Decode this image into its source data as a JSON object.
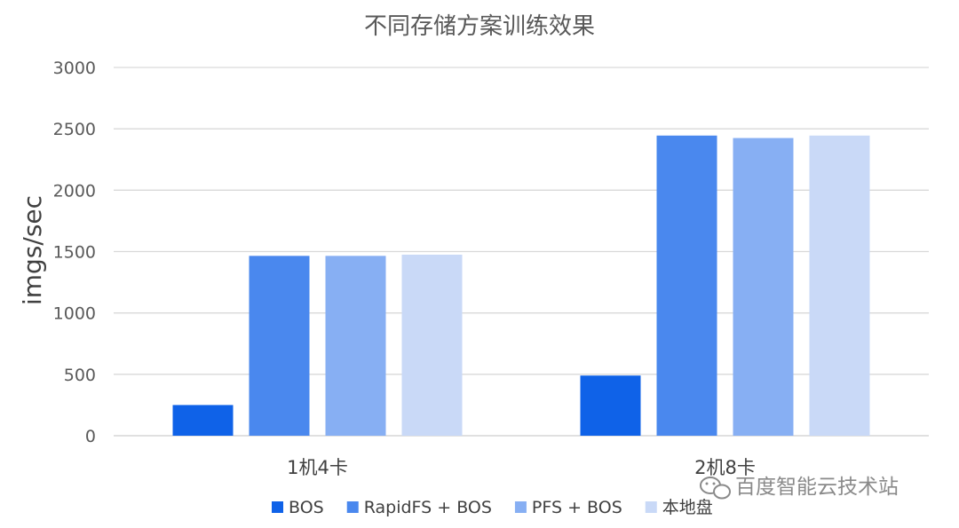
{
  "chart_data": {
    "type": "bar",
    "title": "不同存储方案训练效果",
    "xlabel": "",
    "ylabel": "imgs/sec",
    "categories": [
      "1机4卡",
      "2机8卡"
    ],
    "ylim": [
      0,
      3000
    ],
    "yticks": [
      0,
      500,
      1000,
      1500,
      2000,
      2500,
      3000
    ],
    "grid": true,
    "legend_position": "bottom",
    "series": [
      {
        "name": "BOS",
        "color": "#0F62E8",
        "values": [
          250,
          490
        ]
      },
      {
        "name": "RapidFS + BOS",
        "color": "#4A88EE",
        "values": [
          1465,
          2445
        ]
      },
      {
        "name": "PFS + BOS",
        "color": "#87AFF3",
        "values": [
          1465,
          2425
        ]
      },
      {
        "name": "本地盘",
        "color": "#C9D9F7",
        "values": [
          1475,
          2445
        ]
      }
    ]
  },
  "watermark": {
    "text": "百度智能云技术站",
    "icon": "wechat-icon"
  }
}
